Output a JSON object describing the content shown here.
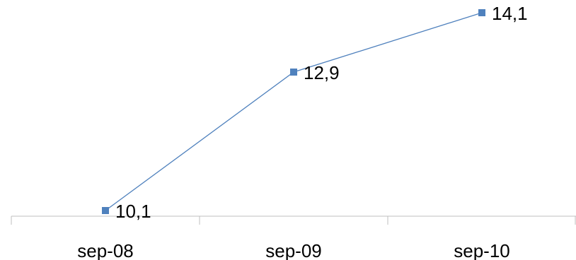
{
  "chart_data": {
    "type": "line",
    "categories": [
      "sep-08",
      "sep-09",
      "sep-10"
    ],
    "series": [
      {
        "values": [
          10.1,
          12.9,
          14.1
        ],
        "labels": [
          "10,1",
          "12,9",
          "14,1"
        ],
        "color": "#4F81BD",
        "marker": "square"
      }
    ],
    "title": "",
    "xlabel": "",
    "ylabel": "",
    "ylim": [
      10.1,
      14.1
    ],
    "grid": false,
    "legend": "none",
    "axis_color": "#BFBFBF"
  }
}
